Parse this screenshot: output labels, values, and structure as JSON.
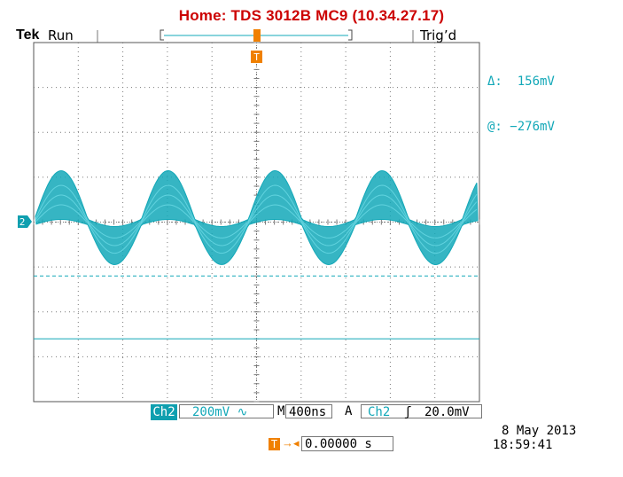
{
  "window": {
    "title": "Home:  TDS 3012B  MC9  (10.34.27.17)"
  },
  "header": {
    "brand": "Tek",
    "acq_state": "Run",
    "trigger_state": "Trig’d"
  },
  "cursors": {
    "delta_label": "Δ:",
    "delta_value": "156mV",
    "at_label": "@:",
    "at_value": "−276mV"
  },
  "channel": {
    "badge": "Ch2",
    "marker": "2",
    "scale": "200mV",
    "coupling_symbol": "∿"
  },
  "horizontal": {
    "label": "M",
    "timebase": "400ns"
  },
  "trigger": {
    "mode_label": "A",
    "source": "Ch2",
    "slope_symbol": "ʃ",
    "level": "20.0mV",
    "marker": "T"
  },
  "trigger_position": {
    "icon": "T",
    "arrow": "→◂",
    "value": "0.00000 s"
  },
  "timestamp": {
    "date": "8 May 2013",
    "time": "18:59:41"
  },
  "colors": {
    "title": "#cc0000",
    "channel": "#13a8b8",
    "trigger": "#f08000",
    "grid": "#7a7a7a"
  },
  "waveform": {
    "peaks": 4,
    "period_div": 2.4,
    "ground_level_div_from_top": 4.0,
    "cursor_dashed_div_from_top": 5.2,
    "cursor_solid_div_from_top": 6.6
  }
}
